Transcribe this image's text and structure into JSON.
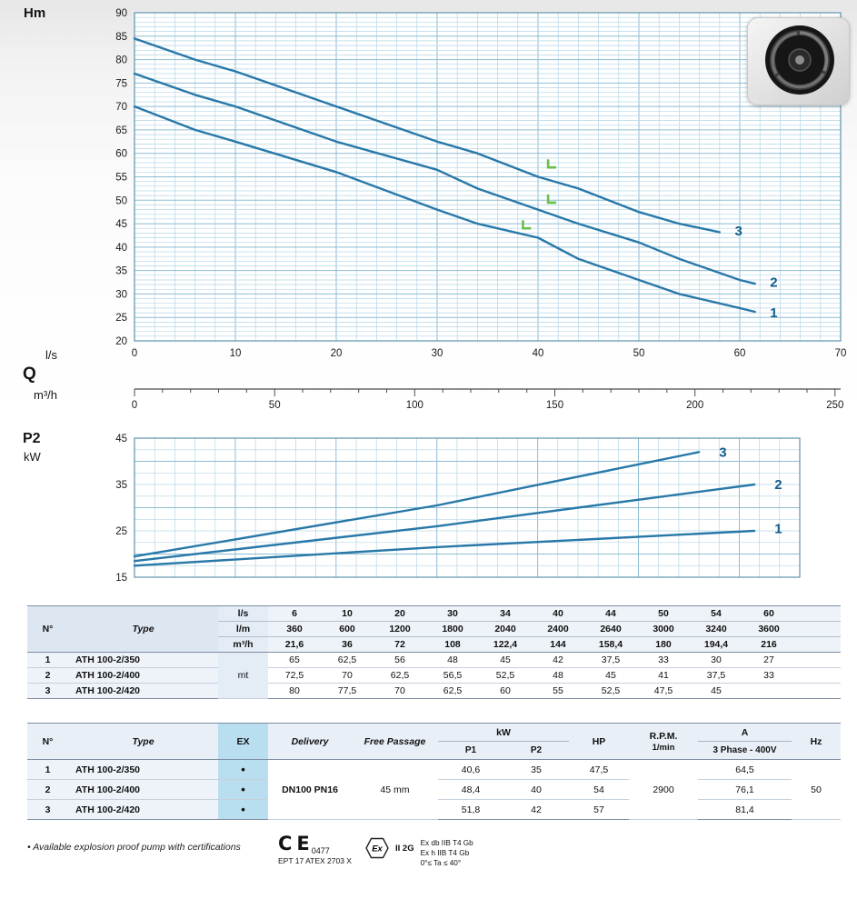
{
  "labels": {
    "hm": "Hm",
    "ls": "l/s",
    "q": "Q",
    "m3h": "m³/h",
    "p2": "P2",
    "kw": "kW"
  },
  "chart_data": [
    {
      "type": "line",
      "title": "Head curves",
      "ylabel": "Hm",
      "xlabel_primary": "l/s",
      "xlabel_secondary": "Q m³/h",
      "xlim": [
        0,
        70
      ],
      "ylim": [
        20,
        90
      ],
      "x_ticks": [
        0,
        10,
        20,
        30,
        40,
        50,
        60,
        70
      ],
      "y_ticks": [
        20,
        25,
        30,
        35,
        40,
        45,
        50,
        55,
        60,
        65,
        70,
        75,
        80,
        85,
        90
      ],
      "q_ticks": [
        0,
        50,
        100,
        150,
        200,
        250
      ],
      "grid": "on",
      "series": [
        {
          "name": "1",
          "pump": "ATH 100-2/350",
          "label_at": [
            63,
            26
          ],
          "points": [
            [
              0,
              70
            ],
            [
              6,
              65
            ],
            [
              10,
              62.5
            ],
            [
              20,
              56
            ],
            [
              30,
              48
            ],
            [
              34,
              45
            ],
            [
              40,
              42
            ],
            [
              44,
              37.5
            ],
            [
              50,
              33
            ],
            [
              54,
              30
            ],
            [
              60,
              27
            ],
            [
              61.5,
              26.2
            ]
          ]
        },
        {
          "name": "2",
          "pump": "ATH 100-2/400",
          "label_at": [
            63,
            32.5
          ],
          "points": [
            [
              0,
              77
            ],
            [
              6,
              72.5
            ],
            [
              10,
              70
            ],
            [
              20,
              62.5
            ],
            [
              30,
              56.5
            ],
            [
              34,
              52.5
            ],
            [
              40,
              48
            ],
            [
              44,
              45
            ],
            [
              50,
              41
            ],
            [
              54,
              37.5
            ],
            [
              60,
              33
            ],
            [
              61.5,
              32.2
            ]
          ]
        },
        {
          "name": "3",
          "pump": "ATH 100-2/420",
          "label_at": [
            59.5,
            43.5
          ],
          "points": [
            [
              0,
              84.5
            ],
            [
              6,
              80
            ],
            [
              10,
              77.5
            ],
            [
              20,
              70
            ],
            [
              30,
              62.5
            ],
            [
              34,
              60
            ],
            [
              40,
              55
            ],
            [
              44,
              52.5
            ],
            [
              50,
              47.5
            ],
            [
              54,
              45
            ],
            [
              58,
              43.2
            ]
          ]
        }
      ],
      "markers": [
        [
          41,
          57
        ],
        [
          41,
          49.5
        ],
        [
          38.5,
          44
        ]
      ]
    },
    {
      "type": "line",
      "title": "Absorbed power",
      "ylabel": "P2 kW",
      "xlim": [
        0,
        66
      ],
      "ylim": [
        15,
        45
      ],
      "y_ticks": [
        15,
        25,
        35,
        45
      ],
      "grid": "on",
      "series": [
        {
          "name": "1",
          "pump": "ATH 100-2/350",
          "label_at": [
            63.5,
            25.5
          ],
          "points": [
            [
              0,
              17.5
            ],
            [
              30,
              21.5
            ],
            [
              61.5,
              25
            ]
          ]
        },
        {
          "name": "2",
          "pump": "ATH 100-2/400",
          "label_at": [
            63.5,
            35
          ],
          "points": [
            [
              0,
              18.5
            ],
            [
              30,
              26
            ],
            [
              61.5,
              35
            ]
          ]
        },
        {
          "name": "3",
          "pump": "ATH 100-2/420",
          "label_at": [
            58,
            42
          ],
          "points": [
            [
              0,
              19.5
            ],
            [
              30,
              30.5
            ],
            [
              56,
              42
            ]
          ]
        }
      ]
    }
  ],
  "table1": {
    "col_headers": {
      "no": "N°",
      "type": "Type"
    },
    "flow_rows": [
      {
        "unit": "l/s",
        "values": [
          "6",
          "10",
          "20",
          "30",
          "34",
          "40",
          "44",
          "50",
          "54",
          "60"
        ]
      },
      {
        "unit": "l/m",
        "values": [
          "360",
          "600",
          "1200",
          "1800",
          "2040",
          "2400",
          "2640",
          "3000",
          "3240",
          "3600"
        ]
      },
      {
        "unit": "m³/h",
        "values": [
          "21,6",
          "36",
          "72",
          "108",
          "122,4",
          "144",
          "158,4",
          "180",
          "194,4",
          "216"
        ]
      }
    ],
    "unit_label": "mt",
    "rows": [
      {
        "no": "1",
        "type": "ATH 100-2/350",
        "values": [
          "65",
          "62,5",
          "56",
          "48",
          "45",
          "42",
          "37,5",
          "33",
          "30",
          "27"
        ]
      },
      {
        "no": "2",
        "type": "ATH 100-2/400",
        "values": [
          "72,5",
          "70",
          "62,5",
          "56,5",
          "52,5",
          "48",
          "45",
          "41",
          "37,5",
          "33"
        ]
      },
      {
        "no": "3",
        "type": "ATH 100-2/420",
        "values": [
          "80",
          "77,5",
          "70",
          "62,5",
          "60",
          "55",
          "52,5",
          "47,5",
          "45",
          ""
        ]
      }
    ]
  },
  "table2": {
    "headers": {
      "no": "N°",
      "type": "Type",
      "ex": "EX",
      "delivery": "Delivery",
      "free_passage": "Free Passage",
      "kw": "kW",
      "p1": "P1",
      "p2": "P2",
      "hp": "HP",
      "rpm": "R.P.M.",
      "rpm_unit": "1/min",
      "a": "A",
      "a_sub": "3 Phase - 400V",
      "hz": "Hz"
    },
    "shared": {
      "delivery": "DN100 PN16",
      "free_passage": "45 mm",
      "rpm": "2900",
      "hz": "50"
    },
    "rows": [
      {
        "no": "1",
        "type": "ATH 100-2/350",
        "ex": "•",
        "p1": "40,6",
        "p2": "35",
        "hp": "47,5",
        "a": "64,5"
      },
      {
        "no": "2",
        "type": "ATH 100-2/400",
        "ex": "•",
        "p1": "48,4",
        "p2": "40",
        "hp": "54",
        "a": "76,1"
      },
      {
        "no": "3",
        "type": "ATH 100-2/420",
        "ex": "•",
        "p1": "51,8",
        "p2": "42",
        "hp": "57",
        "a": "81,4"
      }
    ]
  },
  "footer": {
    "note": "• Available explosion proof pump with certifications",
    "ce_mark": "CE",
    "ce_number": "0477",
    "atex_cert": "EPT 17 ATEX 2703 X",
    "ex_symbol": "Ex",
    "group": "II 2G",
    "cert_lines": [
      "Ex db IIB T4 Gb",
      "Ex h IIB T4 Gb",
      "0°≤ Ta ≤ 40°"
    ]
  }
}
